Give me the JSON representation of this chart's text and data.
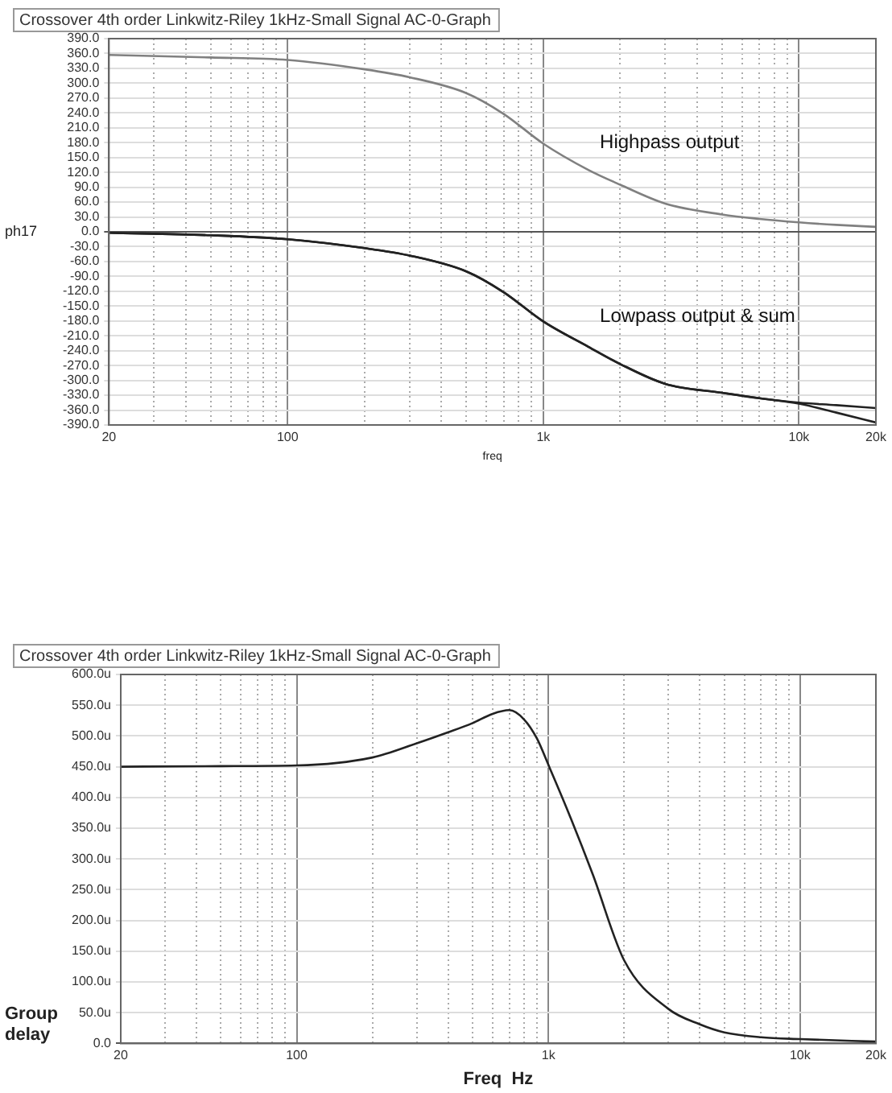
{
  "chart_data": [
    {
      "type": "line",
      "title": "Crossover 4th order Linkwitz-Riley 1kHz-Small Signal AC-0-Graph",
      "xlabel": "freq",
      "ylabel": "ph17",
      "log": "x",
      "grid": true,
      "legend": false,
      "marker": "none",
      "line_style": "solid",
      "x": [
        20,
        50,
        100,
        200,
        300,
        500,
        700,
        1000,
        1500,
        2000,
        3000,
        5000,
        7000,
        10000,
        14000,
        20000
      ],
      "xlim": [
        20,
        20000
      ],
      "xticks": [
        {
          "value": 20,
          "label": "20"
        },
        {
          "value": 30,
          "label": null
        },
        {
          "value": 40,
          "label": null
        },
        {
          "value": 50,
          "label": null
        },
        {
          "value": 60,
          "label": null
        },
        {
          "value": 70,
          "label": null
        },
        {
          "value": 80,
          "label": null
        },
        {
          "value": 90,
          "label": null
        },
        {
          "value": 100,
          "label": "100"
        },
        {
          "value": 200,
          "label": null
        },
        {
          "value": 300,
          "label": null
        },
        {
          "value": 400,
          "label": null
        },
        {
          "value": 500,
          "label": null
        },
        {
          "value": 600,
          "label": null
        },
        {
          "value": 700,
          "label": null
        },
        {
          "value": 800,
          "label": null
        },
        {
          "value": 900,
          "label": null
        },
        {
          "value": 1000,
          "label": "1k"
        },
        {
          "value": 2000,
          "label": null
        },
        {
          "value": 3000,
          "label": null
        },
        {
          "value": 4000,
          "label": null
        },
        {
          "value": 5000,
          "label": null
        },
        {
          "value": 6000,
          "label": null
        },
        {
          "value": 7000,
          "label": null
        },
        {
          "value": 8000,
          "label": null
        },
        {
          "value": 9000,
          "label": null
        },
        {
          "value": 10000,
          "label": "10k"
        },
        {
          "value": 20000,
          "label": "20k"
        }
      ],
      "ylim": [
        -390,
        390
      ],
      "yticks": [
        {
          "value": -390,
          "label": "-390.0"
        },
        {
          "value": -360,
          "label": "-360.0"
        },
        {
          "value": -330,
          "label": "-330.0"
        },
        {
          "value": -300,
          "label": "-300.0"
        },
        {
          "value": -270,
          "label": "-270.0"
        },
        {
          "value": -240,
          "label": "-240.0"
        },
        {
          "value": -210,
          "label": "-210.0"
        },
        {
          "value": -180,
          "label": "-180.0"
        },
        {
          "value": -150,
          "label": "-150.0"
        },
        {
          "value": -120,
          "label": "-120.0"
        },
        {
          "value": -90,
          "label": "-90.0"
        },
        {
          "value": -60,
          "label": "-60.0"
        },
        {
          "value": -30,
          "label": "-30.0"
        },
        {
          "value": 0,
          "label": "0.0"
        },
        {
          "value": 30,
          "label": "30.0"
        },
        {
          "value": 60,
          "label": "60.0"
        },
        {
          "value": 90,
          "label": "90.0"
        },
        {
          "value": 120,
          "label": "120.0"
        },
        {
          "value": 150,
          "label": "150.0"
        },
        {
          "value": 180,
          "label": "180.0"
        },
        {
          "value": 210,
          "label": "210.0"
        },
        {
          "value": 240,
          "label": "240.0"
        },
        {
          "value": 270,
          "label": "270.0"
        },
        {
          "value": 300,
          "label": "300.0"
        },
        {
          "value": 330,
          "label": "330.0"
        },
        {
          "value": 360,
          "label": "360.0"
        },
        {
          "value": 390,
          "label": "390.0"
        }
      ],
      "series": [
        {
          "color": "#808080",
          "values": [
            357,
            352,
            347,
            328,
            312,
            280,
            238,
            178,
            125,
            95,
            57,
            35,
            26,
            19,
            14,
            10
          ]
        },
        {
          "color": "#222222",
          "values": [
            -2,
            -7,
            -15,
            -33,
            -48,
            -80,
            -122,
            -181,
            -232,
            -267,
            -307,
            -325,
            -336,
            -347,
            -365,
            -385
          ]
        },
        {
          "color": "#222222",
          "values": [
            -2,
            -7,
            -15,
            -33,
            -48,
            -80,
            -122,
            -181,
            -232,
            -267,
            -307,
            -325,
            -336,
            -345,
            -350,
            -356
          ]
        }
      ],
      "annotations": [
        "Highpass output",
        "Lowpass output & sum"
      ]
    },
    {
      "type": "line",
      "title": "Crossover 4th order Linkwitz-Riley 1kHz-Small Signal AC-0-Graph",
      "xlabel": "Freq  Hz",
      "ylabel": "Group delay",
      "log": "x",
      "grid": true,
      "legend": false,
      "marker": "none",
      "line_style": "solid",
      "x": [
        20,
        50,
        100,
        200,
        300,
        400,
        500,
        600,
        700,
        800,
        900,
        1000,
        1200,
        1500,
        2000,
        3000,
        4000,
        5000,
        7000,
        10000,
        20000
      ],
      "xlim": [
        20,
        20000
      ],
      "xticks": [
        {
          "value": 20,
          "label": "20"
        },
        {
          "value": 30,
          "label": null
        },
        {
          "value": 40,
          "label": null
        },
        {
          "value": 50,
          "label": null
        },
        {
          "value": 60,
          "label": null
        },
        {
          "value": 70,
          "label": null
        },
        {
          "value": 80,
          "label": null
        },
        {
          "value": 90,
          "label": null
        },
        {
          "value": 100,
          "label": "100"
        },
        {
          "value": 200,
          "label": null
        },
        {
          "value": 300,
          "label": null
        },
        {
          "value": 400,
          "label": null
        },
        {
          "value": 500,
          "label": null
        },
        {
          "value": 600,
          "label": null
        },
        {
          "value": 700,
          "label": null
        },
        {
          "value": 800,
          "label": null
        },
        {
          "value": 900,
          "label": null
        },
        {
          "value": 1000,
          "label": "1k"
        },
        {
          "value": 2000,
          "label": null
        },
        {
          "value": 3000,
          "label": null
        },
        {
          "value": 4000,
          "label": null
        },
        {
          "value": 5000,
          "label": null
        },
        {
          "value": 6000,
          "label": null
        },
        {
          "value": 7000,
          "label": null
        },
        {
          "value": 8000,
          "label": null
        },
        {
          "value": 9000,
          "label": null
        },
        {
          "value": 10000,
          "label": "10k"
        },
        {
          "value": 20000,
          "label": "20k"
        }
      ],
      "ylim": [
        0,
        600
      ],
      "yticks": [
        {
          "value": 0,
          "label": "0.0"
        },
        {
          "value": 50,
          "label": "50.0u"
        },
        {
          "value": 100,
          "label": "100.0u"
        },
        {
          "value": 150,
          "label": "150.0u"
        },
        {
          "value": 200,
          "label": "200.0u"
        },
        {
          "value": 250,
          "label": "250.0u"
        },
        {
          "value": 300,
          "label": "300.0u"
        },
        {
          "value": 350,
          "label": "350.0u"
        },
        {
          "value": 400,
          "label": "400.0u"
        },
        {
          "value": 450,
          "label": "450.0u"
        },
        {
          "value": 500,
          "label": "500.0u"
        },
        {
          "value": 550,
          "label": "550.0u"
        },
        {
          "value": 600,
          "label": "600.0u"
        }
      ],
      "series": [
        {
          "color": "#222222",
          "values": [
            450,
            451,
            452,
            465,
            488,
            506,
            521,
            536,
            542,
            527,
            496,
            453,
            376,
            275,
            135,
            56,
            31,
            18,
            10,
            7,
            3
          ]
        }
      ]
    }
  ]
}
